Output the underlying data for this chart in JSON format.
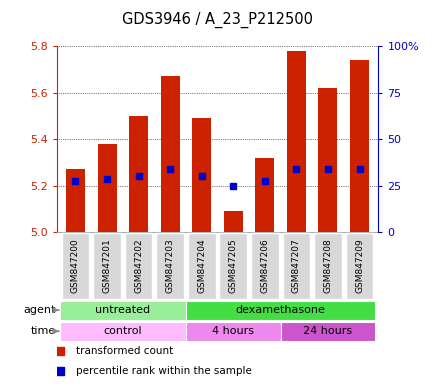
{
  "title": "GDS3946 / A_23_P212500",
  "samples": [
    "GSM847200",
    "GSM847201",
    "GSM847202",
    "GSM847203",
    "GSM847204",
    "GSM847205",
    "GSM847206",
    "GSM847207",
    "GSM847208",
    "GSM847209"
  ],
  "bar_tops": [
    5.27,
    5.38,
    5.5,
    5.67,
    5.49,
    5.09,
    5.32,
    5.78,
    5.62,
    5.74
  ],
  "percentile_values": [
    5.22,
    5.23,
    5.24,
    5.27,
    5.24,
    5.2,
    5.22,
    5.27,
    5.27,
    5.27
  ],
  "ylim": [
    5.0,
    5.8
  ],
  "yticks": [
    5.0,
    5.2,
    5.4,
    5.6,
    5.8
  ],
  "y2ticks": [
    0,
    25,
    50,
    75,
    100
  ],
  "bar_color": "#cc2200",
  "dot_color": "#0000cc",
  "agent_groups": [
    {
      "label": "untreated",
      "start": 0,
      "end": 4,
      "color": "#99ee99"
    },
    {
      "label": "dexamethasone",
      "start": 4,
      "end": 10,
      "color": "#44dd44"
    }
  ],
  "time_groups": [
    {
      "label": "control",
      "start": 0,
      "end": 4,
      "color": "#ffbbff"
    },
    {
      "label": "4 hours",
      "start": 4,
      "end": 7,
      "color": "#ee88ee"
    },
    {
      "label": "24 hours",
      "start": 7,
      "end": 10,
      "color": "#cc55cc"
    }
  ],
  "ylabel_left_color": "#cc2200",
  "ylabel_right_color": "#0000cc"
}
